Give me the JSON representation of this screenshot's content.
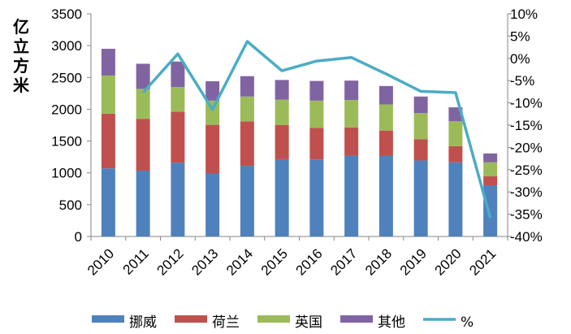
{
  "chart_data": {
    "type": "bar",
    "stacked": true,
    "categories": [
      "2010",
      "2011",
      "2012",
      "2013",
      "2014",
      "2015",
      "2016",
      "2017",
      "2018",
      "2019",
      "2020",
      "2021"
    ],
    "ylabel": "亿立方米",
    "ylim": [
      0,
      3500
    ],
    "y_ticks": [
      0,
      500,
      1000,
      1500,
      2000,
      2500,
      3000,
      3500
    ],
    "y_tick_labels": [
      "0",
      "500",
      "1000",
      "1500",
      "2000",
      "2500",
      "3000",
      "3500"
    ],
    "y2lim": [
      -40,
      10
    ],
    "y2_ticks": [
      10,
      5,
      0,
      -5,
      -10,
      -15,
      -20,
      -25,
      -30,
      -35,
      -40
    ],
    "y2_tick_labels": [
      "10%",
      "5%",
      "0%",
      "-5%",
      "-10%",
      "-15%",
      "-20%",
      "-25%",
      "-30%",
      "-35%",
      "-40%"
    ],
    "grid": false,
    "legend_position": "bottom",
    "series": [
      {
        "name": "挪威",
        "color": "#4F81BD",
        "values": [
          1070,
          1035,
          1160,
          990,
          1110,
          1215,
          1210,
          1270,
          1265,
          1195,
          1165,
          805
        ]
      },
      {
        "name": "荷兰",
        "color": "#C0504D",
        "values": [
          860,
          815,
          800,
          765,
          700,
          535,
          495,
          445,
          400,
          335,
          255,
          140
        ]
      },
      {
        "name": "英国",
        "color": "#9BBB59",
        "values": [
          600,
          470,
          390,
          380,
          390,
          400,
          430,
          430,
          410,
          410,
          390,
          220
        ]
      },
      {
        "name": "其他",
        "color": "#8064A2",
        "values": [
          420,
          395,
          400,
          305,
          320,
          310,
          310,
          305,
          290,
          260,
          220,
          140
        ]
      }
    ],
    "line_series": {
      "name": "%",
      "color": "#4BACC6",
      "axis": "right",
      "values": [
        null,
        -7.7,
        1.0,
        -11.5,
        3.8,
        -2.8,
        -0.6,
        0.2,
        -3.5,
        -7.4,
        -7.7,
        -35.8
      ]
    }
  }
}
